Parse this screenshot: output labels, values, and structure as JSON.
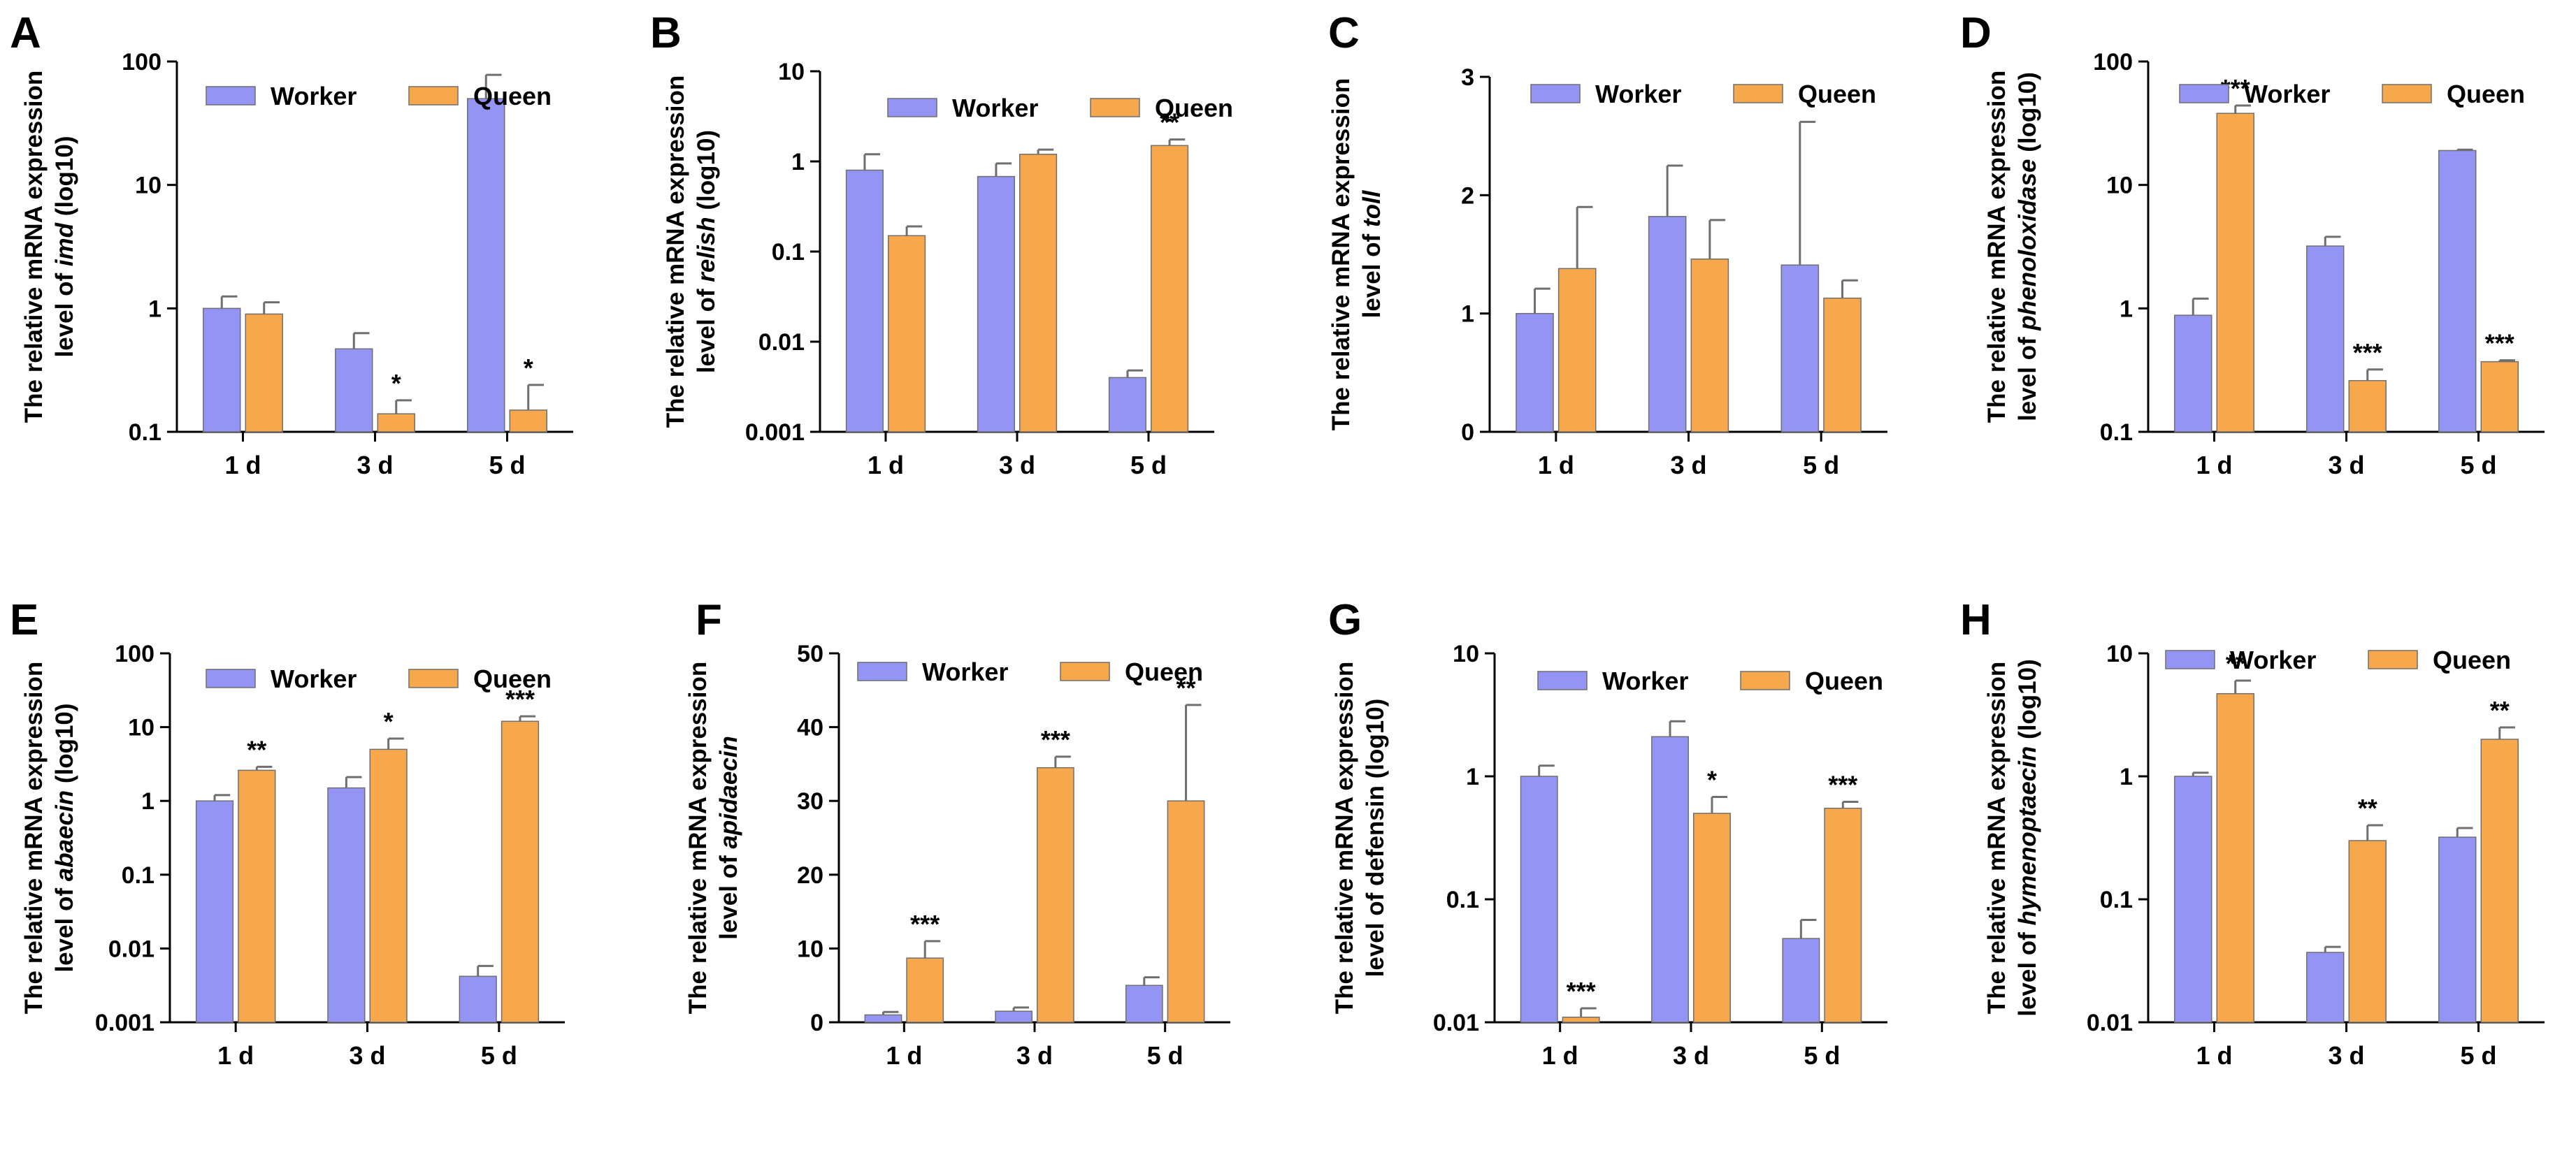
{
  "colors": {
    "worker": "#9494f4",
    "queen": "#f8a84c",
    "axis": "#000000",
    "bar_edge": "#6f6f6f"
  },
  "chart_data": [
    {
      "panel": "A",
      "type": "bar",
      "scale": "log",
      "categories": [
        "1 d",
        "3 d",
        "5 d"
      ],
      "legend": [
        "Worker",
        "Queen"
      ],
      "ylabel_lines": [
        [
          {
            "t": "The relative mRNA expression"
          }
        ],
        [
          {
            "t": "level of "
          },
          {
            "t": "imd",
            "i": true
          },
          {
            "t": " (log10)"
          }
        ]
      ],
      "ylim": [
        0.1,
        100
      ],
      "ticks": [
        {
          "v": 0.1,
          "l": "0.1"
        },
        {
          "v": 1,
          "l": "1"
        },
        {
          "v": 10,
          "l": "10"
        },
        {
          "v": 100,
          "l": "100"
        }
      ],
      "series": [
        {
          "name": "Worker",
          "values": [
            1.0,
            0.47,
            50
          ],
          "err": [
            1.25,
            0.63,
            78
          ],
          "sig": [
            "",
            "",
            ""
          ]
        },
        {
          "name": "Queen",
          "values": [
            0.9,
            0.14,
            0.15
          ],
          "err": [
            1.12,
            0.18,
            0.24
          ],
          "sig": [
            "",
            "*",
            "*"
          ]
        }
      ]
    },
    {
      "panel": "B",
      "type": "bar",
      "scale": "log",
      "categories": [
        "1 d",
        "3 d",
        "5 d"
      ],
      "legend": [
        "Worker",
        "Queen"
      ],
      "ylabel_lines": [
        [
          {
            "t": "The relative mRNA expression"
          }
        ],
        [
          {
            "t": "level of "
          },
          {
            "t": "relish",
            "i": true
          },
          {
            "t": " (log10)"
          }
        ]
      ],
      "ylim": [
        0.001,
        10
      ],
      "ticks": [
        {
          "v": 0.001,
          "l": "0.001"
        },
        {
          "v": 0.01,
          "l": "0.01"
        },
        {
          "v": 0.1,
          "l": "0.1"
        },
        {
          "v": 1,
          "l": "1"
        },
        {
          "v": 10,
          "l": "10"
        }
      ],
      "series": [
        {
          "name": "Worker",
          "values": [
            0.8,
            0.68,
            0.004
          ],
          "err": [
            1.2,
            0.95,
            0.0048
          ],
          "sig": [
            "",
            "",
            ""
          ]
        },
        {
          "name": "Queen",
          "values": [
            0.15,
            1.2,
            1.5
          ],
          "err": [
            0.19,
            1.35,
            1.75
          ],
          "sig": [
            "",
            "",
            "**"
          ]
        }
      ]
    },
    {
      "panel": "C",
      "type": "bar",
      "scale": "linear",
      "categories": [
        "1 d",
        "3 d",
        "5 d"
      ],
      "legend": [
        "Worker",
        "Queen"
      ],
      "ylabel_lines": [
        [
          {
            "t": "The relative mRNA expression"
          }
        ],
        [
          {
            "t": "level of "
          },
          {
            "t": "toll",
            "i": true
          }
        ]
      ],
      "ylim": [
        0,
        3
      ],
      "ticks": [
        {
          "v": 0,
          "l": "0"
        },
        {
          "v": 1,
          "l": "1"
        },
        {
          "v": 2,
          "l": "2"
        },
        {
          "v": 3,
          "l": "3"
        }
      ],
      "series": [
        {
          "name": "Worker",
          "values": [
            1.0,
            1.82,
            1.41
          ],
          "err": [
            1.21,
            2.25,
            2.62
          ],
          "sig": [
            "",
            "",
            ""
          ]
        },
        {
          "name": "Queen",
          "values": [
            1.38,
            1.46,
            1.13
          ],
          "err": [
            1.9,
            1.79,
            1.28
          ],
          "sig": [
            "",
            "",
            ""
          ]
        }
      ]
    },
    {
      "panel": "D",
      "type": "bar",
      "scale": "log",
      "categories": [
        "1 d",
        "3 d",
        "5 d"
      ],
      "legend": [
        "Worker",
        "Queen"
      ],
      "ylabel_lines": [
        [
          {
            "t": "The relative mRNA expression"
          }
        ],
        [
          {
            "t": "level of "
          },
          {
            "t": "phenoloxidase",
            "i": true
          },
          {
            "t": " (log10)"
          }
        ]
      ],
      "ylim": [
        0.1,
        100
      ],
      "ticks": [
        {
          "v": 0.1,
          "l": "0.1"
        },
        {
          "v": 1,
          "l": "1"
        },
        {
          "v": 10,
          "l": "10"
        },
        {
          "v": 100,
          "l": "100"
        }
      ],
      "series": [
        {
          "name": "Worker",
          "values": [
            0.88,
            3.2,
            19
          ],
          "err": [
            1.2,
            3.8,
            19.3
          ],
          "sig": [
            "",
            "",
            ""
          ]
        },
        {
          "name": "Queen",
          "values": [
            38,
            0.26,
            0.37
          ],
          "err": [
            44,
            0.32,
            0.38
          ],
          "sig": [
            "***",
            "***",
            "***"
          ]
        }
      ]
    },
    {
      "panel": "E",
      "type": "bar",
      "scale": "log",
      "categories": [
        "1 d",
        "3 d",
        "5 d"
      ],
      "legend": [
        "Worker",
        "Queen"
      ],
      "ylabel_lines": [
        [
          {
            "t": "The relative mRNA expression"
          }
        ],
        [
          {
            "t": "level of "
          },
          {
            "t": "abaecin",
            "i": true
          },
          {
            "t": " (log10)"
          }
        ]
      ],
      "ylim": [
        0.001,
        100
      ],
      "ticks": [
        {
          "v": 0.001,
          "l": "0.001"
        },
        {
          "v": 0.01,
          "l": "0.01"
        },
        {
          "v": 0.1,
          "l": "0.1"
        },
        {
          "v": 1,
          "l": "1"
        },
        {
          "v": 10,
          "l": "10"
        },
        {
          "v": 100,
          "l": "100"
        }
      ],
      "series": [
        {
          "name": "Worker",
          "values": [
            1.0,
            1.5,
            0.0042
          ],
          "err": [
            1.2,
            2.1,
            0.0058
          ],
          "sig": [
            "",
            "",
            ""
          ]
        },
        {
          "name": "Queen",
          "values": [
            2.6,
            5.0,
            12
          ],
          "err": [
            2.9,
            7.0,
            14
          ],
          "sig": [
            "**",
            "*",
            "***"
          ]
        }
      ]
    },
    {
      "panel": "F",
      "type": "bar",
      "scale": "linear",
      "categories": [
        "1 d",
        "3 d",
        "5 d"
      ],
      "legend": [
        "Worker",
        "Queen"
      ],
      "ylabel_lines": [
        [
          {
            "t": "The relative mRNA expression"
          }
        ],
        [
          {
            "t": "level of "
          },
          {
            "t": "apidaecin",
            "i": true
          }
        ]
      ],
      "ylim": [
        0,
        50
      ],
      "ticks": [
        {
          "v": 0,
          "l": "0"
        },
        {
          "v": 10,
          "l": "10"
        },
        {
          "v": 20,
          "l": "20"
        },
        {
          "v": 30,
          "l": "30"
        },
        {
          "v": 40,
          "l": "40"
        },
        {
          "v": 50,
          "l": "50"
        }
      ],
      "series": [
        {
          "name": "Worker",
          "values": [
            1.0,
            1.5,
            5.0
          ],
          "err": [
            1.4,
            2.0,
            6.1
          ],
          "sig": [
            "",
            "",
            ""
          ]
        },
        {
          "name": "Queen",
          "values": [
            8.7,
            34.5,
            30
          ],
          "err": [
            11.0,
            36.0,
            43
          ],
          "sig": [
            "***",
            "***",
            "**"
          ]
        }
      ]
    },
    {
      "panel": "G",
      "type": "bar",
      "scale": "log",
      "categories": [
        "1 d",
        "3 d",
        "5 d"
      ],
      "legend": [
        "Worker",
        "Queen"
      ],
      "ylabel_lines": [
        [
          {
            "t": "The relative mRNA expression"
          }
        ],
        [
          {
            "t": "level of defensin  (log10)"
          }
        ]
      ],
      "ylim": [
        0.01,
        10
      ],
      "ticks": [
        {
          "v": 0.01,
          "l": "0.01"
        },
        {
          "v": 0.1,
          "l": "0.1"
        },
        {
          "v": 1,
          "l": "1"
        },
        {
          "v": 10,
          "l": "10"
        }
      ],
      "series": [
        {
          "name": "Worker",
          "values": [
            1.0,
            2.1,
            0.048
          ],
          "err": [
            1.22,
            2.8,
            0.068
          ],
          "sig": [
            "",
            "",
            ""
          ]
        },
        {
          "name": "Queen",
          "values": [
            0.011,
            0.5,
            0.55
          ],
          "err": [
            0.013,
            0.68,
            0.62
          ],
          "sig": [
            "***",
            "*",
            "***"
          ]
        }
      ]
    },
    {
      "panel": "H",
      "type": "bar",
      "scale": "log",
      "categories": [
        "1 d",
        "3 d",
        "5 d"
      ],
      "legend": [
        "Worker",
        "Queen"
      ],
      "ylabel_lines": [
        [
          {
            "t": "The relative mRNA expression"
          }
        ],
        [
          {
            "t": "level of "
          },
          {
            "t": "hymenoptaecin",
            "i": true
          },
          {
            "t": " (log10)"
          }
        ]
      ],
      "ylim": [
        0.01,
        10
      ],
      "ticks": [
        {
          "v": 0.01,
          "l": "0.01"
        },
        {
          "v": 0.1,
          "l": "0.1"
        },
        {
          "v": 1,
          "l": "1"
        },
        {
          "v": 10,
          "l": "10"
        }
      ],
      "series": [
        {
          "name": "Worker",
          "values": [
            1.0,
            0.037,
            0.32
          ],
          "err": [
            1.07,
            0.041,
            0.38
          ],
          "sig": [
            "",
            "",
            ""
          ]
        },
        {
          "name": "Queen",
          "values": [
            4.7,
            0.3,
            2.0
          ],
          "err": [
            6.0,
            0.4,
            2.5
          ],
          "sig": [
            "**",
            "**",
            "**"
          ]
        }
      ]
    }
  ]
}
